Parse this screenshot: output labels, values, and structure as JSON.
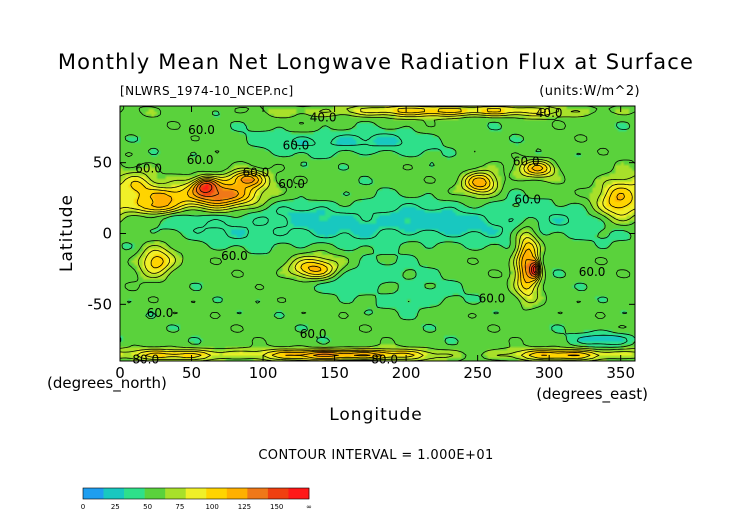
{
  "chart_data": {
    "type": "heatmap",
    "title": "Monthly Mean Net Longwave Radiation Flux at Surface",
    "file_label": "[NLWRS_1974-10_NCEP.nc]",
    "units_label": "(units:W/m^2)",
    "xlabel": "Longitude",
    "ylabel": "Latitude",
    "x_units": "(degrees_east)",
    "y_units": "(degrees_north)",
    "xlim": [
      0,
      360
    ],
    "ylim": [
      -90,
      90
    ],
    "x_ticks": [
      0,
      50,
      100,
      150,
      200,
      250,
      300,
      350
    ],
    "y_ticks": [
      -50,
      0,
      50
    ],
    "contour_interval_text": "CONTOUR INTERVAL = 1.000E+01",
    "colorbar": {
      "tick_labels": [
        "0",
        "25",
        "50",
        "75",
        "100",
        "125",
        "150",
        "∞"
      ],
      "colors": [
        "#1e9ef0",
        "#18c8c0",
        "#2ee08a",
        "#5ad23c",
        "#a8e02a",
        "#f0f028",
        "#ffd400",
        "#ffb000",
        "#f07818",
        "#f04010",
        "#ff1818"
      ]
    },
    "contour_labels": [
      {
        "text": "40.0",
        "lon": 142,
        "lat": 82
      },
      {
        "text": "40.0",
        "lon": 300,
        "lat": 85
      },
      {
        "text": "60.0",
        "lon": 57,
        "lat": 73
      },
      {
        "text": "60.0",
        "lon": 123,
        "lat": 62
      },
      {
        "text": "60.0",
        "lon": 20,
        "lat": 46
      },
      {
        "text": "60.0",
        "lon": 56,
        "lat": 52
      },
      {
        "text": "60.0",
        "lon": 95,
        "lat": 43
      },
      {
        "text": "60.0",
        "lon": 120,
        "lat": 35
      },
      {
        "text": "60.0",
        "lon": 284,
        "lat": 51
      },
      {
        "text": "60.0",
        "lon": 285,
        "lat": 24
      },
      {
        "text": "60.0",
        "lon": 80,
        "lat": -16
      },
      {
        "text": "60.0",
        "lon": 330,
        "lat": -27
      },
      {
        "text": "60.0",
        "lon": 260,
        "lat": -46
      },
      {
        "text": "60.0",
        "lon": 28,
        "lat": -56
      },
      {
        "text": "60.0",
        "lon": 135,
        "lat": -71
      },
      {
        "text": "80.0",
        "lon": 18,
        "lat": -89
      },
      {
        "text": "80.0",
        "lon": 185,
        "lat": -89
      }
    ],
    "field_features": [
      {
        "lon": 0,
        "lat": 0,
        "value": 55,
        "r": 400,
        "type": "base"
      },
      {
        "lon": 195,
        "lat": 8,
        "value": 33,
        "rx": 150,
        "ry": 14
      },
      {
        "lon": 105,
        "lat": 6,
        "value": 38,
        "rx": 50,
        "ry": 12
      },
      {
        "lon": 160,
        "lat": -30,
        "value": 38,
        "rx": 40,
        "ry": 10
      },
      {
        "lon": 210,
        "lat": -45,
        "value": 42,
        "rx": 25,
        "ry": 10
      },
      {
        "lon": 160,
        "lat": 65,
        "value": 35,
        "rx": 60,
        "ry": 8
      },
      {
        "lon": 340,
        "lat": -75,
        "value": 30,
        "rx": 20,
        "ry": 5
      },
      {
        "lon": 70,
        "lat": 28,
        "value": 120,
        "rx": 28,
        "ry": 10
      },
      {
        "lon": 60,
        "lat": 33,
        "value": 140,
        "rx": 8,
        "ry": 6
      },
      {
        "lon": 28,
        "lat": 26,
        "value": 105,
        "rx": 20,
        "ry": 6
      },
      {
        "lon": 88,
        "lat": 38,
        "value": 120,
        "rx": 12,
        "ry": 6
      },
      {
        "lon": 25,
        "lat": 20,
        "value": 110,
        "rx": 15,
        "ry": 6
      },
      {
        "lon": 12,
        "lat": 32,
        "value": 95,
        "rx": 12,
        "ry": 10
      },
      {
        "lon": 252,
        "lat": 36,
        "value": 110,
        "rx": 12,
        "ry": 8
      },
      {
        "lon": 292,
        "lat": 46,
        "value": 100,
        "rx": 12,
        "ry": 6
      },
      {
        "lon": 350,
        "lat": 25,
        "value": 100,
        "rx": 15,
        "ry": 15
      },
      {
        "lon": 285,
        "lat": -22,
        "value": 115,
        "rx": 8,
        "ry": 22
      },
      {
        "lon": 290,
        "lat": -25,
        "value": 150,
        "rx": 3,
        "ry": 6
      },
      {
        "lon": 135,
        "lat": -25,
        "value": 105,
        "rx": 18,
        "ry": 8
      },
      {
        "lon": 25,
        "lat": -20,
        "value": 100,
        "rx": 12,
        "ry": 10
      },
      {
        "lon": 155,
        "lat": -86,
        "value": 115,
        "rx": 60,
        "ry": 4
      },
      {
        "lon": 40,
        "lat": -86,
        "value": 95,
        "rx": 40,
        "ry": 4
      },
      {
        "lon": 310,
        "lat": -86,
        "value": 100,
        "rx": 40,
        "ry": 4
      },
      {
        "lon": 230,
        "lat": 87,
        "value": 95,
        "rx": 90,
        "ry": 4
      }
    ]
  }
}
